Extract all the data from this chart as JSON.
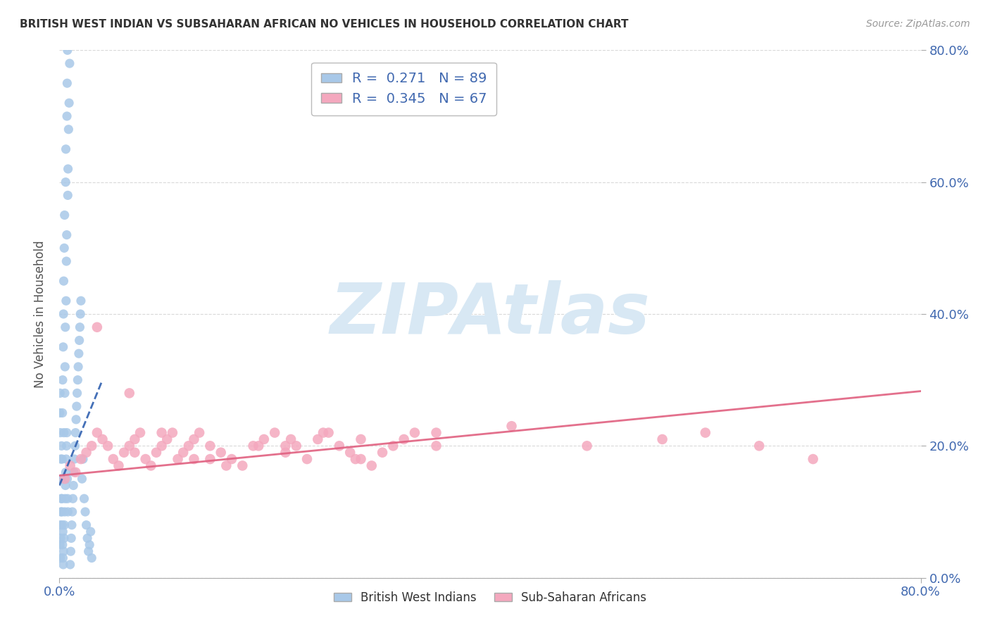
{
  "title": "BRITISH WEST INDIAN VS SUBSAHARAN AFRICAN NO VEHICLES IN HOUSEHOLD CORRELATION CHART",
  "source": "Source: ZipAtlas.com",
  "ylabel": "No Vehicles in Household",
  "ytick_labels": [
    "0.0%",
    "20.0%",
    "40.0%",
    "60.0%",
    "80.0%"
  ],
  "ytick_values": [
    0,
    20,
    40,
    60,
    80
  ],
  "xtick_labels": [
    "0.0%",
    "80.0%"
  ],
  "xtick_values": [
    0,
    80
  ],
  "xlim": [
    0,
    80
  ],
  "ylim": [
    0,
    80
  ],
  "blue_R": 0.271,
  "blue_N": 89,
  "pink_R": 0.345,
  "pink_N": 67,
  "legend_label_blue": "British West Indians",
  "legend_label_pink": "Sub-Saharan Africans",
  "blue_color": "#a8c8e8",
  "pink_color": "#f4a8be",
  "blue_line_color": "#3060b0",
  "pink_line_color": "#e06080",
  "background_color": "#ffffff",
  "title_color": "#333333",
  "axis_label_color": "#4169b0",
  "watermark_text": "ZIPAtlas",
  "watermark_color": "#d8e8f4",
  "grid_color": "#d0d0d0",
  "blue_x_data": [
    0.05,
    0.08,
    0.1,
    0.12,
    0.15,
    0.18,
    0.2,
    0.22,
    0.25,
    0.28,
    0.3,
    0.32,
    0.35,
    0.38,
    0.4,
    0.42,
    0.45,
    0.48,
    0.5,
    0.52,
    0.55,
    0.58,
    0.6,
    0.62,
    0.65,
    0.68,
    0.7,
    0.72,
    0.75,
    0.78,
    0.8,
    0.85,
    0.9,
    0.95,
    1.0,
    1.05,
    1.1,
    1.15,
    1.2,
    1.25,
    1.3,
    1.35,
    1.4,
    1.45,
    1.5,
    1.55,
    1.6,
    1.65,
    1.7,
    1.75,
    1.8,
    1.85,
    1.9,
    1.95,
    2.0,
    2.1,
    2.2,
    2.3,
    2.4,
    2.5,
    2.6,
    2.7,
    2.8,
    2.9,
    3.0,
    0.03,
    0.06,
    0.09,
    0.13,
    0.16,
    0.19,
    0.23,
    0.26,
    0.29,
    0.33,
    0.36,
    0.39,
    0.43,
    0.46,
    0.49,
    0.53,
    0.56,
    0.59,
    0.63,
    0.66,
    0.69,
    0.73,
    0.76,
    0.79
  ],
  "blue_y_data": [
    5,
    8,
    3,
    6,
    10,
    15,
    20,
    12,
    18,
    25,
    30,
    7,
    35,
    40,
    45,
    22,
    50,
    55,
    28,
    32,
    38,
    60,
    65,
    42,
    48,
    52,
    70,
    75,
    80,
    58,
    62,
    68,
    72,
    78,
    2,
    4,
    6,
    8,
    10,
    12,
    14,
    16,
    18,
    20,
    22,
    24,
    26,
    28,
    30,
    32,
    34,
    36,
    38,
    40,
    42,
    15,
    18,
    12,
    10,
    8,
    6,
    4,
    5,
    7,
    3,
    25,
    28,
    22,
    18,
    15,
    12,
    10,
    8,
    5,
    3,
    2,
    4,
    6,
    8,
    10,
    12,
    14,
    16,
    18,
    20,
    22,
    15,
    12,
    10
  ],
  "pink_x_data": [
    0.5,
    1.0,
    1.5,
    2.0,
    2.5,
    3.0,
    3.5,
    4.0,
    4.5,
    5.0,
    5.5,
    6.0,
    6.5,
    7.0,
    7.5,
    8.0,
    8.5,
    9.0,
    9.5,
    10.0,
    10.5,
    11.0,
    11.5,
    12.0,
    12.5,
    13.0,
    14.0,
    15.0,
    16.0,
    17.0,
    18.0,
    19.0,
    20.0,
    21.0,
    22.0,
    23.0,
    24.0,
    25.0,
    26.0,
    27.0,
    28.0,
    29.0,
    30.0,
    31.0,
    32.0,
    33.0,
    35.0,
    60.0,
    65.0,
    70.0,
    3.5,
    6.5,
    9.5,
    12.5,
    15.5,
    18.5,
    21.5,
    24.5,
    27.5,
    7.0,
    14.0,
    21.0,
    28.0,
    35.0,
    42.0,
    49.0,
    56.0
  ],
  "pink_y_data": [
    15,
    17,
    16,
    18,
    19,
    20,
    22,
    21,
    20,
    18,
    17,
    19,
    20,
    21,
    22,
    18,
    17,
    19,
    20,
    21,
    22,
    18,
    19,
    20,
    21,
    22,
    20,
    19,
    18,
    17,
    20,
    21,
    22,
    19,
    20,
    18,
    21,
    22,
    20,
    19,
    18,
    17,
    19,
    20,
    21,
    22,
    20,
    22,
    20,
    18,
    38,
    28,
    22,
    18,
    17,
    20,
    21,
    22,
    18,
    19,
    18,
    20,
    21,
    22,
    23,
    20,
    21
  ],
  "blue_line_x": [
    0,
    3
  ],
  "blue_line_slope": 4.0,
  "blue_line_intercept": 14.0,
  "pink_line_x": [
    0,
    80
  ],
  "pink_line_slope": 0.16,
  "pink_line_intercept": 15.5
}
